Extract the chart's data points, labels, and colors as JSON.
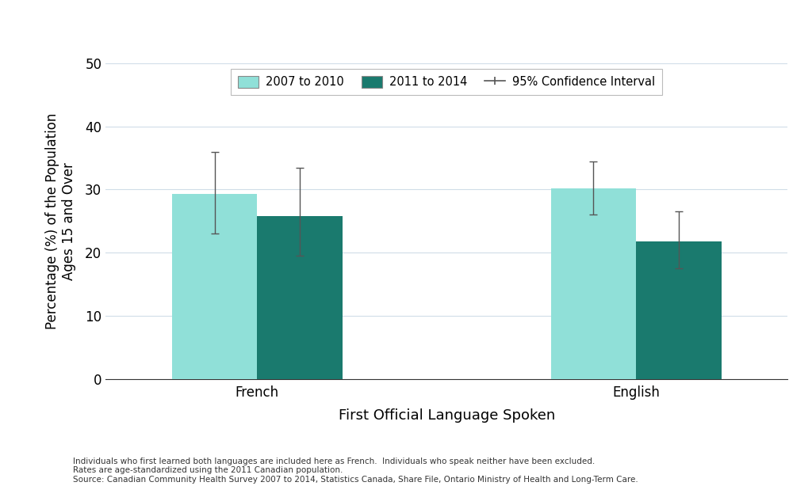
{
  "categories": [
    "French",
    "English"
  ],
  "bar1_values": [
    29.3,
    30.2
  ],
  "bar2_values": [
    25.8,
    21.8
  ],
  "bar1_ci_lower": [
    23.0,
    26.0
  ],
  "bar1_ci_upper": [
    36.0,
    34.5
  ],
  "bar2_ci_lower": [
    19.5,
    17.5
  ],
  "bar2_ci_upper": [
    33.5,
    26.5
  ],
  "bar1_color": "#90E0D8",
  "bar2_color": "#1A7A6E",
  "bar1_label": "2007 to 2010",
  "bar2_label": "2011 to 2014",
  "ci_label": "95% Confidence Interval",
  "ylabel": "Percentage (%) of the Population\nAges 15 and Over",
  "xlabel": "First Official Language Spoken",
  "ylim": [
    0,
    50
  ],
  "yticks": [
    0,
    10,
    20,
    30,
    40,
    50
  ],
  "footnote_line1": "Individuals who first learned both languages are included here as French.  Individuals who speak neither have been excluded.",
  "footnote_line2": "Rates are age-standardized using the 2011 Canadian population.",
  "footnote_line3": "Source: Canadian Community Health Survey 2007 to 2014, Statistics Canada, Share File, Ontario Ministry of Health and Long-Term Care.",
  "error_bar_color": "#555555",
  "background_color": "#ffffff",
  "grid_color": "#d0dde8"
}
